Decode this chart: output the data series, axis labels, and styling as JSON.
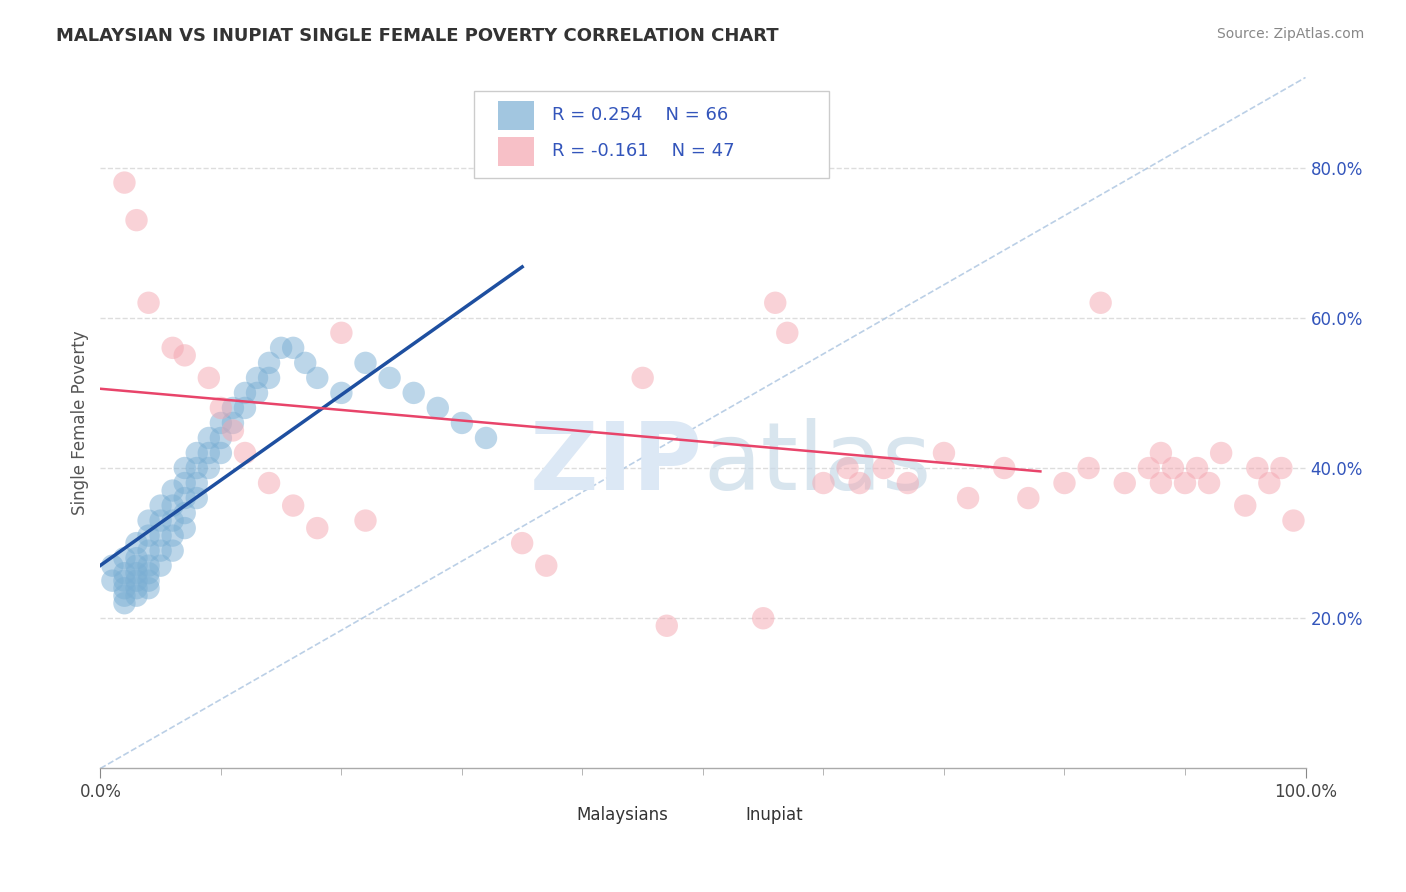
{
  "title": "MALAYSIAN VS INUPIAT SINGLE FEMALE POVERTY CORRELATION CHART",
  "source": "Source: ZipAtlas.com",
  "ylabel": "Single Female Poverty",
  "xlim": [
    0,
    1
  ],
  "ylim": [
    0,
    0.92
  ],
  "xtick_positions": [
    0,
    1.0
  ],
  "xtick_labels": [
    "0.0%",
    "100.0%"
  ],
  "ytick_positions": [
    0.2,
    0.4,
    0.6,
    0.8
  ],
  "ytick_labels": [
    "20.0%",
    "40.0%",
    "60.0%",
    "80.0%"
  ],
  "malaysian_R": 0.254,
  "malaysian_N": 66,
  "inupiat_R": -0.161,
  "inupiat_N": 47,
  "blue_color": "#7bafd4",
  "pink_color": "#f4a6b0",
  "blue_line_color": "#1e4fa0",
  "pink_line_color": "#e8446a",
  "legend_R_color": "#3355bb",
  "watermark_color": "#dce8f5",
  "background_color": "#ffffff",
  "grid_color": "#dddddd",
  "grid_linestyle": "--",
  "malaysian_x": [
    0.01,
    0.01,
    0.02,
    0.02,
    0.02,
    0.02,
    0.02,
    0.02,
    0.03,
    0.03,
    0.03,
    0.03,
    0.03,
    0.03,
    0.03,
    0.04,
    0.04,
    0.04,
    0.04,
    0.04,
    0.04,
    0.04,
    0.05,
    0.05,
    0.05,
    0.05,
    0.05,
    0.06,
    0.06,
    0.06,
    0.06,
    0.06,
    0.07,
    0.07,
    0.07,
    0.07,
    0.07,
    0.08,
    0.08,
    0.08,
    0.08,
    0.09,
    0.09,
    0.09,
    0.1,
    0.1,
    0.1,
    0.11,
    0.11,
    0.12,
    0.12,
    0.13,
    0.13,
    0.14,
    0.14,
    0.15,
    0.16,
    0.17,
    0.18,
    0.2,
    0.22,
    0.24,
    0.26,
    0.28,
    0.3,
    0.32
  ],
  "malaysian_y": [
    0.27,
    0.25,
    0.28,
    0.26,
    0.25,
    0.24,
    0.23,
    0.22,
    0.3,
    0.28,
    0.27,
    0.26,
    0.25,
    0.24,
    0.23,
    0.33,
    0.31,
    0.29,
    0.27,
    0.26,
    0.25,
    0.24,
    0.35,
    0.33,
    0.31,
    0.29,
    0.27,
    0.37,
    0.35,
    0.33,
    0.31,
    0.29,
    0.4,
    0.38,
    0.36,
    0.34,
    0.32,
    0.42,
    0.4,
    0.38,
    0.36,
    0.44,
    0.42,
    0.4,
    0.46,
    0.44,
    0.42,
    0.48,
    0.46,
    0.5,
    0.48,
    0.52,
    0.5,
    0.54,
    0.52,
    0.56,
    0.56,
    0.54,
    0.52,
    0.5,
    0.54,
    0.52,
    0.5,
    0.48,
    0.46,
    0.44
  ],
  "inupiat_x": [
    0.02,
    0.03,
    0.04,
    0.06,
    0.07,
    0.09,
    0.1,
    0.11,
    0.12,
    0.14,
    0.16,
    0.18,
    0.2,
    0.22,
    0.35,
    0.37,
    0.45,
    0.47,
    0.55,
    0.56,
    0.57,
    0.6,
    0.62,
    0.63,
    0.65,
    0.67,
    0.7,
    0.72,
    0.75,
    0.77,
    0.8,
    0.82,
    0.83,
    0.85,
    0.87,
    0.88,
    0.88,
    0.89,
    0.9,
    0.91,
    0.92,
    0.93,
    0.95,
    0.96,
    0.97,
    0.98,
    0.99
  ],
  "inupiat_y": [
    0.78,
    0.73,
    0.62,
    0.56,
    0.55,
    0.52,
    0.48,
    0.45,
    0.42,
    0.38,
    0.35,
    0.32,
    0.58,
    0.33,
    0.3,
    0.27,
    0.52,
    0.19,
    0.2,
    0.62,
    0.58,
    0.38,
    0.4,
    0.38,
    0.4,
    0.38,
    0.42,
    0.36,
    0.4,
    0.36,
    0.38,
    0.4,
    0.62,
    0.38,
    0.4,
    0.42,
    0.38,
    0.4,
    0.38,
    0.4,
    0.38,
    0.42,
    0.35,
    0.4,
    0.38,
    0.4,
    0.33
  ]
}
